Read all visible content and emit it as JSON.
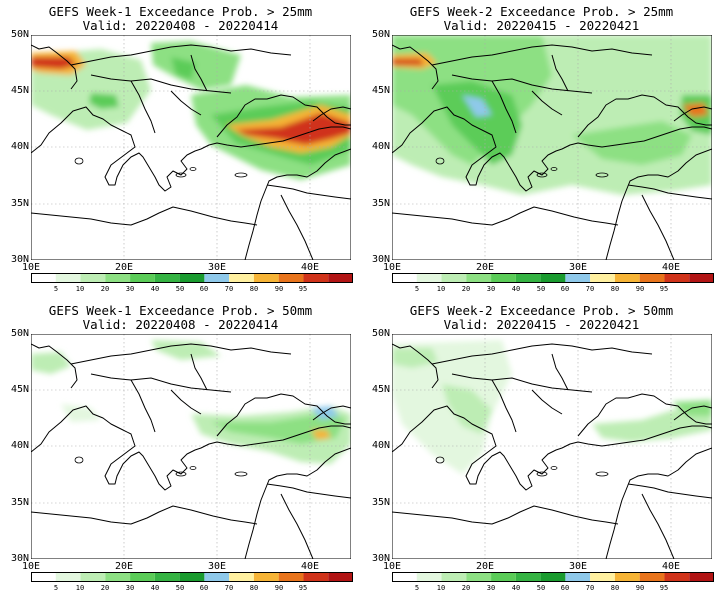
{
  "panels": [
    {
      "title": "GEFS Week-1 Exceedance Prob. > 25mm",
      "valid": "Valid: 20220408 - 20220414"
    },
    {
      "title": "GEFS Week-2 Exceedance Prob. > 25mm",
      "valid": "Valid: 20220415 - 20220421"
    },
    {
      "title": "GEFS Week-1 Exceedance Prob. > 50mm",
      "valid": "Valid: 20220408 - 20220414"
    },
    {
      "title": "GEFS Week-2 Exceedance Prob. > 50mm",
      "valid": "Valid: 20220415 - 20220421"
    }
  ],
  "axes": {
    "lat_ticks": [
      "50N",
      "45N",
      "40N",
      "35N",
      "30N"
    ],
    "lon_ticks": [
      "10E",
      "20E",
      "30E",
      "40E"
    ],
    "lon_range": [
      10,
      44.5
    ],
    "lat_range": [
      30,
      50
    ]
  },
  "colorbar": {
    "labels": [
      "5",
      "10",
      "20",
      "30",
      "40",
      "50",
      "60",
      "70",
      "80",
      "90",
      "95"
    ],
    "colors": [
      "#ffffff",
      "#e3f7df",
      "#bdedb4",
      "#8de083",
      "#5bcc58",
      "#35b343",
      "#1a9b2f",
      "#8fc9ea",
      "#fff0a0",
      "#f6b436",
      "#e8741c",
      "#d0331a",
      "#b21414"
    ]
  }
}
